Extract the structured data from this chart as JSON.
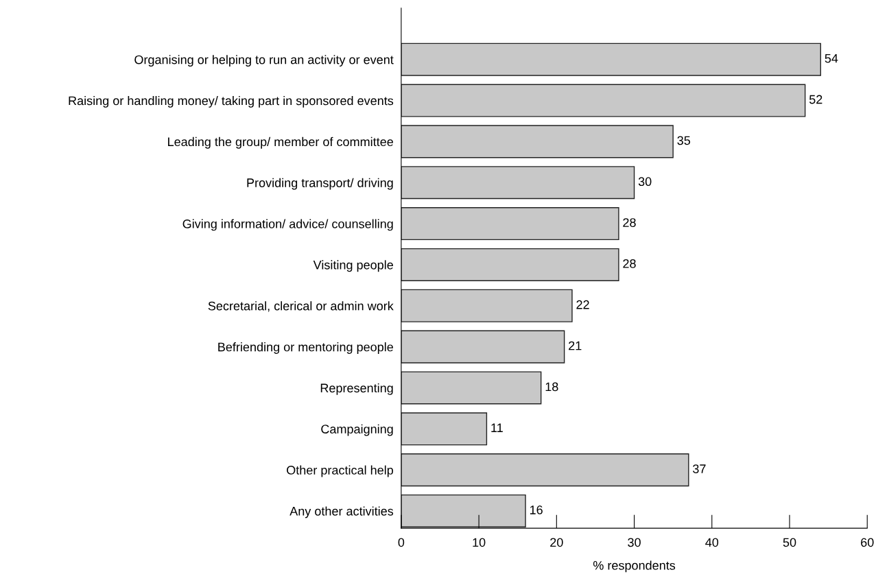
{
  "chart_data": {
    "type": "bar",
    "orientation": "horizontal",
    "xlabel": "% respondents",
    "categories": [
      "Organising or helping to run an activity or event",
      "Raising or handling money/ taking part in sponsored events",
      "Leading the group/ member of committee",
      "Providing transport/ driving",
      "Giving information/ advice/ counselling",
      "Visiting people",
      "Secretarial, clerical or admin work",
      "Befriending or mentoring people",
      "Representing",
      "Campaigning",
      "Other practical help",
      "Any other activities"
    ],
    "values": [
      54,
      52,
      35,
      30,
      28,
      28,
      22,
      21,
      18,
      11,
      37,
      16
    ],
    "color": "#c8c8c8",
    "xlim": [
      0,
      60
    ],
    "xticks": [
      0,
      10,
      20,
      30,
      40,
      50,
      60
    ],
    "data_labels": true,
    "grid": false,
    "legend": false
  }
}
